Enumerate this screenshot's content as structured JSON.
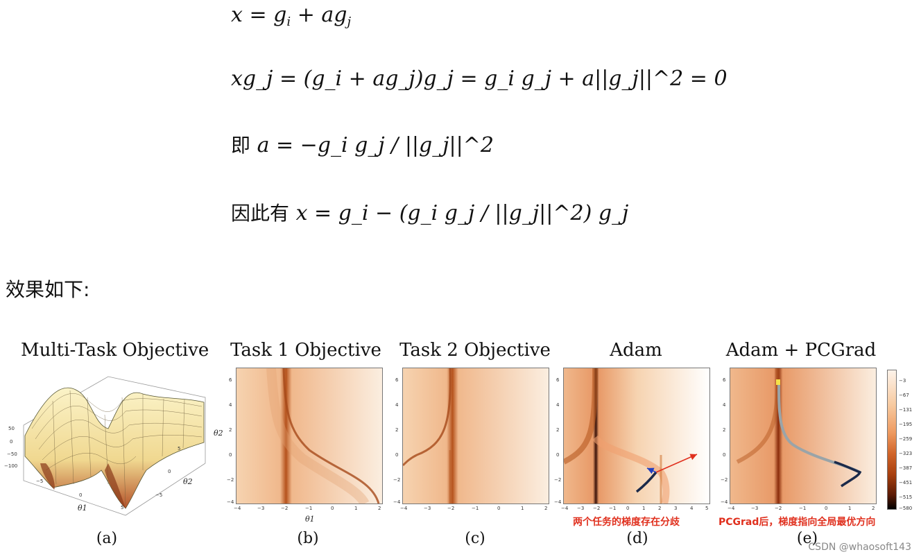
{
  "equations": {
    "line1": {
      "x": "x",
      "eq": "=",
      "gi": "g",
      "gi_sub": "i",
      "plus": "+",
      "agj": "ag",
      "agj_sub": "j"
    },
    "line2_text": "xg_j = (g_i + ag_j)g_j = g_i g_j + a||g_j||^2 = 0",
    "line3_prefix": "即",
    "line3_text": "a = −g_i g_j / ||g_j||^2",
    "line4_prefix": "因此有",
    "line4_text": "x = g_i − (g_i g_j / ||g_j||^2) g_j"
  },
  "heading": "效果如下:",
  "figure": {
    "panels": [
      {
        "title": "Multi-Task Objective",
        "caption": "(a)"
      },
      {
        "title": "Task 1 Objective",
        "caption": "(b)"
      },
      {
        "title": "Task 2 Objective",
        "caption": "(c)"
      },
      {
        "title": "Adam",
        "caption": "(d)"
      },
      {
        "title": "Adam + PCGrad",
        "caption": "(e)"
      }
    ],
    "annotations": {
      "d": "两个任务的梯度存在分歧",
      "e": "PCGrad后，梯度指向全局最优方向"
    },
    "surface_z_ticks": [
      "50",
      "0",
      "−50",
      "−100"
    ],
    "surface_axis_labels": {
      "x": "θ1",
      "y": "θ2"
    },
    "surface_x_ticks": [
      "−5",
      "0",
      "5"
    ],
    "surface_y_ticks": [
      "−5",
      "0",
      "5"
    ],
    "contour_x_ticks": [
      "−4",
      "−3",
      "−2",
      "−1",
      "0",
      "1",
      "2"
    ],
    "contour_x_ticks_wide": [
      "−4",
      "−3",
      "−2",
      "−1",
      "0",
      "1",
      "2",
      "3",
      "4",
      "5"
    ],
    "contour_y_ticks": [
      "6",
      "4",
      "2",
      "0",
      "−2",
      "−4"
    ],
    "contour_axis_labels": {
      "x": "θ1",
      "y": "θ2"
    },
    "colorbar_ticks": [
      "−3",
      "−67",
      "−131",
      "−195",
      "−259",
      "−323",
      "−387",
      "−451",
      "−515",
      "−580"
    ],
    "colors": {
      "light": "#fbeee0",
      "mid": "#f0b98a",
      "dark": "#8a2c0a",
      "path": "#1b2a4a",
      "arrow_red": "#e0301e",
      "arrow_blue": "#2340c0"
    }
  },
  "watermark": "CSDN @whaosoft143"
}
